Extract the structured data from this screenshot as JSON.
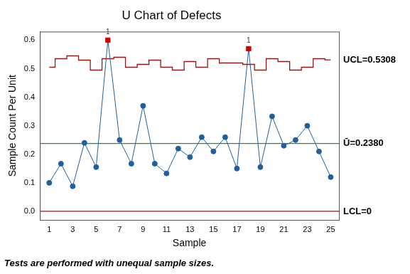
{
  "chart_data": {
    "type": "line",
    "title": "U Chart of Defects",
    "x_label": "Sample",
    "y_label": "Sample Count Per Unit",
    "x": [
      1,
      2,
      3,
      4,
      5,
      6,
      7,
      8,
      9,
      10,
      11,
      12,
      13,
      14,
      15,
      16,
      17,
      18,
      19,
      20,
      21,
      22,
      23,
      24,
      25
    ],
    "values": [
      0.1,
      0.167,
      0.088,
      0.24,
      0.155,
      0.6,
      0.25,
      0.167,
      0.37,
      0.167,
      0.133,
      0.22,
      0.19,
      0.26,
      0.21,
      0.26,
      0.15,
      0.57,
      0.155,
      0.333,
      0.23,
      0.25,
      0.3,
      0.21,
      0.12
    ],
    "color": "#1f5f9e",
    "colors": [
      "#1f5f9e",
      "#1f5f9e",
      "#1f5f9e",
      "#1f5f9e",
      "#1f5f9e",
      "#d40000",
      "#1f5f9e",
      "#1f5f9e",
      "#1f5f9e",
      "#1f5f9e",
      "#1f5f9e",
      "#1f5f9e",
      "#1f5f9e",
      "#1f5f9e",
      "#1f5f9e",
      "#1f5f9e",
      "#1f5f9e",
      "#d40000",
      "#1f5f9e",
      "#1f5f9e",
      "#1f5f9e",
      "#1f5f9e",
      "#1f5f9e",
      "#1f5f9e",
      "#1f5f9e"
    ],
    "marker": "circle",
    "lines": [
      {
        "label": "UCL=0.5308",
        "color": "#8b1a1a",
        "line_style": "step",
        "values": [
          0.505,
          0.535,
          0.545,
          0.53,
          0.495,
          0.535,
          0.54,
          0.505,
          0.515,
          0.53,
          0.505,
          0.495,
          0.525,
          0.505,
          0.535,
          0.52,
          0.52,
          0.515,
          0.495,
          0.535,
          0.525,
          0.495,
          0.505,
          0.535,
          0.5308
        ]
      },
      {
        "label": "Ū=0.2380",
        "color": "#2e8b2e",
        "line_style": "solid",
        "value": 0.238
      },
      {
        "label": "LCL=0",
        "color": "#8b1a1a",
        "line_style": "solid",
        "value": 0
      }
    ],
    "annotations": [
      {
        "x": 6,
        "text": "1"
      },
      {
        "x": 18,
        "text": "1"
      }
    ],
    "footnote": "Tests are performed with unequal sample sizes.",
    "xlim": [
      0.2,
      25.7
    ],
    "xticks": [
      1,
      3,
      5,
      7,
      9,
      11,
      13,
      15,
      17,
      19,
      21,
      23,
      25
    ],
    "ylim": [
      -0.03,
      0.63
    ],
    "yticks": [
      {
        "value": 0,
        "label": "0.0"
      },
      0.1,
      0.2,
      0.3,
      0.4,
      0.5,
      0.6
    ],
    "grid": false
  }
}
